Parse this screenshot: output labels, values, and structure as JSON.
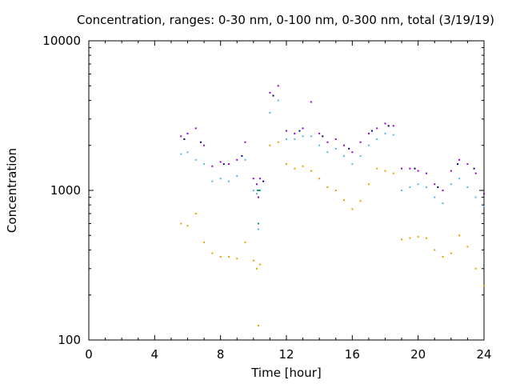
{
  "chart_data": {
    "type": "scatter",
    "title": "Concentration, ranges: 0-30 nm, 0-100 nm, 0-300 nm, total (3/19/19)",
    "xlabel": "Time [hour]",
    "ylabel": "Concentration",
    "xlim": [
      0,
      24
    ],
    "ylim": [
      100,
      10000
    ],
    "yscale": "log",
    "grid": false,
    "legend": "none",
    "x_ticks": [
      0,
      4,
      8,
      12,
      16,
      20,
      24
    ],
    "x_tick_labels": [
      "0",
      "4",
      "8",
      "12",
      "16",
      "20",
      "24"
    ],
    "y_ticks": [
      100,
      1000,
      10000
    ],
    "y_tick_labels": [
      "100",
      "1000",
      "10000"
    ],
    "series": [
      {
        "color": "#e69f00",
        "x": [
          5.6,
          6.0,
          6.5,
          7.0,
          7.5,
          8.0,
          8.5,
          9.0,
          9.5,
          10.0,
          10.2,
          10.3,
          10.4,
          11.0,
          11.5,
          12.0,
          12.5,
          13.0,
          13.5,
          14.0,
          14.5,
          15.0,
          15.5,
          16.0,
          16.5,
          17.0,
          17.5,
          18.0,
          18.5,
          19.0,
          19.5,
          20.0,
          20.5,
          21.0,
          21.5,
          22.0,
          22.5,
          23.0,
          23.5,
          24.0
        ],
        "y": [
          600,
          580,
          700,
          450,
          380,
          360,
          360,
          350,
          450,
          340,
          300,
          125,
          320,
          2000,
          2100,
          1500,
          1400,
          1450,
          1350,
          1200,
          1050,
          1000,
          860,
          750,
          850,
          1100,
          1400,
          1350,
          1300,
          470,
          480,
          490,
          480,
          400,
          360,
          380,
          500,
          420,
          300,
          230
        ]
      },
      {
        "color": "#56b4e9",
        "x": [
          5.6,
          6.0,
          6.5,
          7.0,
          7.5,
          8.0,
          8.5,
          9.0,
          9.5,
          10.0,
          10.2,
          10.3,
          10.4,
          11.0,
          11.5,
          12.0,
          12.5,
          13.0,
          13.5,
          14.0,
          14.5,
          15.0,
          15.5,
          16.0,
          16.5,
          17.0,
          17.5,
          18.0,
          18.5,
          19.0,
          19.5,
          20.0,
          20.5,
          21.0,
          21.5,
          22.0,
          22.5,
          23.0,
          23.5,
          24.0
        ],
        "y": [
          1750,
          1800,
          1600,
          1500,
          1150,
          1200,
          1150,
          1250,
          1600,
          1000,
          950,
          550,
          1000,
          3300,
          4000,
          2200,
          2200,
          2300,
          2300,
          2000,
          1800,
          1900,
          1700,
          1500,
          1700,
          2000,
          2200,
          2400,
          2350,
          1000,
          1050,
          1100,
          1050,
          900,
          820,
          1100,
          1200,
          1050,
          900,
          780
        ]
      },
      {
        "color": "#009e73",
        "x": [
          10.25,
          10.3,
          10.35
        ],
        "y": [
          1000,
          600,
          1000
        ]
      },
      {
        "color": "#9400d3",
        "x": [
          5.6,
          6.0,
          6.5,
          7.0,
          7.5,
          8.0,
          8.5,
          9.0,
          9.5,
          10.0,
          10.2,
          10.3,
          10.4,
          11.0,
          11.5,
          12.0,
          12.5,
          13.0,
          13.5,
          14.0,
          14.5,
          15.0,
          15.5,
          16.0,
          16.5,
          17.0,
          17.5,
          18.0,
          18.5,
          19.0,
          19.5,
          20.0,
          20.5,
          21.0,
          21.5,
          22.0,
          22.5,
          23.0,
          23.5,
          24.0
        ],
        "y": [
          2300,
          2400,
          2600,
          2000,
          1450,
          1550,
          1500,
          1600,
          2100,
          1200,
          1100,
          900,
          1200,
          4500,
          5000,
          2500,
          2400,
          2600,
          3900,
          2400,
          2100,
          2200,
          2000,
          1800,
          2100,
          2400,
          2600,
          2800,
          2700,
          1400,
          1400,
          1350,
          1300,
          1100,
          1000,
          1350,
          1600,
          1500,
          1300,
          950
        ]
      },
      {
        "color": "#000080",
        "x": [
          5.8,
          6.8,
          8.2,
          9.3,
          10.6,
          11.2,
          12.8,
          14.2,
          15.8,
          17.2,
          18.2,
          19.8,
          21.2,
          22.4,
          23.4
        ],
        "y": [
          2200,
          2100,
          1500,
          1700,
          1150,
          4300,
          2500,
          2300,
          1900,
          2500,
          2700,
          1400,
          1050,
          1500,
          1400
        ]
      }
    ]
  }
}
